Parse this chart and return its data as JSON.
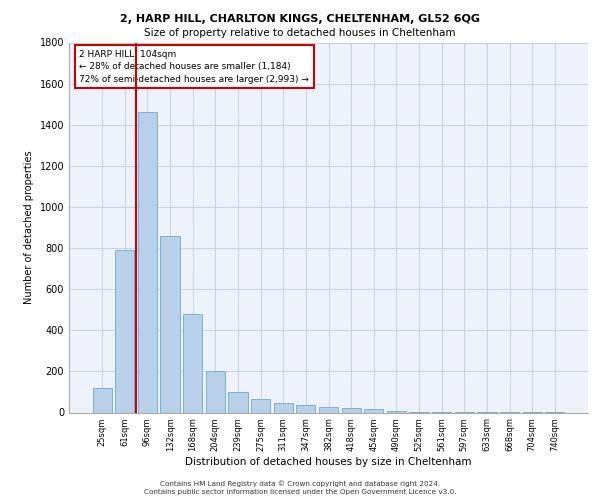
{
  "title1": "2, HARP HILL, CHARLTON KINGS, CHELTENHAM, GL52 6QG",
  "title2": "Size of property relative to detached houses in Cheltenham",
  "xlabel": "Distribution of detached houses by size in Cheltenham",
  "ylabel": "Number of detached properties",
  "categories": [
    "25sqm",
    "61sqm",
    "96sqm",
    "132sqm",
    "168sqm",
    "204sqm",
    "239sqm",
    "275sqm",
    "311sqm",
    "347sqm",
    "382sqm",
    "418sqm",
    "454sqm",
    "490sqm",
    "525sqm",
    "561sqm",
    "597sqm",
    "633sqm",
    "668sqm",
    "704sqm",
    "740sqm"
  ],
  "values": [
    120,
    790,
    1460,
    860,
    480,
    200,
    100,
    65,
    45,
    35,
    25,
    22,
    18,
    8,
    3,
    2,
    1,
    1,
    1,
    1,
    1
  ],
  "bar_color": "#b8d0ea",
  "bar_edge_color": "#6aaad4",
  "vline_index": 2,
  "vline_color": "#cc0000",
  "annotation_text": "2 HARP HILL: 104sqm\n← 28% of detached houses are smaller (1,184)\n72% of semi-detached houses are larger (2,993) →",
  "annotation_box_color": "#ffffff",
  "annotation_box_edge_color": "#cc0000",
  "footer1": "Contains HM Land Registry data © Crown copyright and database right 2024.",
  "footer2": "Contains public sector information licensed under the Open Government Licence v3.0.",
  "ylim": [
    0,
    1800
  ],
  "yticks": [
    0,
    200,
    400,
    600,
    800,
    1000,
    1200,
    1400,
    1600,
    1800
  ],
  "bg_color": "#eef2fb",
  "grid_color": "#c8d0e8"
}
